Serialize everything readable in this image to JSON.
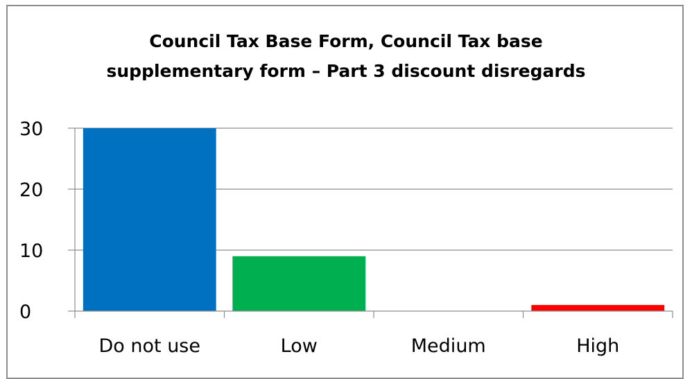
{
  "chart_data": {
    "type": "bar",
    "title_lines": [
      "Council Tax Base Form, Council Tax base",
      "supplementary form – Part 3 discount disregards"
    ],
    "categories": [
      "Do not use",
      "Low",
      "Medium",
      "High"
    ],
    "values": [
      30,
      9,
      0,
      1
    ],
    "colors": [
      "#0070c0",
      "#00b050",
      "#808080",
      "#ff0000"
    ],
    "ylim": [
      0,
      30
    ],
    "yticks": [
      0,
      10,
      20,
      30
    ],
    "grid": true,
    "legend": "none",
    "xlabel": "",
    "ylabel": ""
  }
}
